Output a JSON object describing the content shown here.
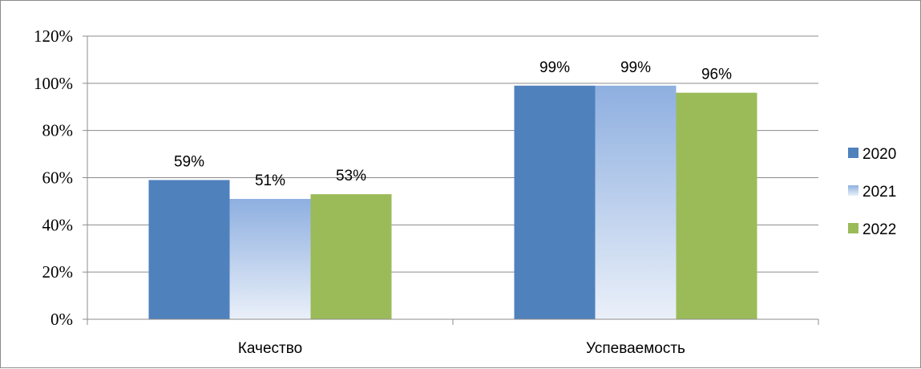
{
  "chart_data": {
    "type": "bar",
    "categories": [
      "Качество",
      "Успеваемость"
    ],
    "series": [
      {
        "name": "2020",
        "values": [
          59,
          99
        ],
        "color": "#4f81bd"
      },
      {
        "name": "2021",
        "values": [
          51,
          99
        ],
        "color": "#95b3e0"
      },
      {
        "name": "2022",
        "values": [
          53,
          96
        ],
        "color": "#9bbb59"
      }
    ],
    "data_labels": [
      [
        "59%",
        "99%"
      ],
      [
        "51%",
        "99%"
      ],
      [
        "53%",
        "96%"
      ]
    ],
    "y_ticks": [
      "0%",
      "20%",
      "40%",
      "60%",
      "80%",
      "100%",
      "120%"
    ],
    "ylim": [
      0,
      120
    ],
    "grid": true,
    "legend_position": "right"
  }
}
